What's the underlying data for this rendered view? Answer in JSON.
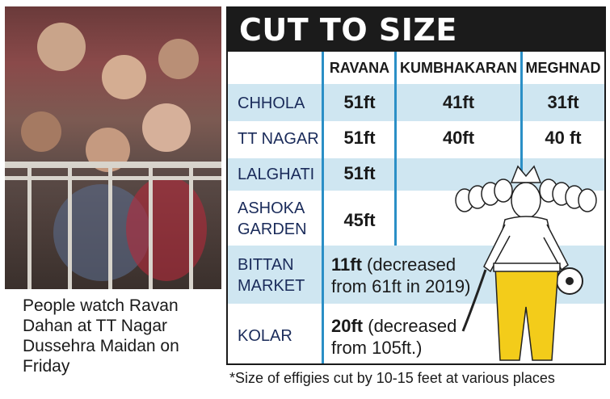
{
  "caption": "People watch Ravan Dahan at TT Nagar Dussehra Maidan on Friday",
  "table": {
    "title": "CUT TO SIZE",
    "columns": [
      "RAVANA",
      "KUMBHAKARAN",
      "MEGHNAD"
    ],
    "rows": [
      {
        "label": "CHHOLA",
        "values": [
          "51ft",
          "41ft",
          "31ft"
        ]
      },
      {
        "label": "TT NAGAR",
        "values": [
          "51ft",
          "40ft",
          "40 ft"
        ]
      },
      {
        "label": "LALGHATI",
        "values": [
          "51ft",
          "",
          ""
        ]
      },
      {
        "label_line1": "ASHOKA",
        "label_line2": "GARDEN",
        "values": [
          "45ft",
          "",
          ""
        ]
      },
      {
        "label_line1": "BITTAN",
        "label_line2": "MARKET",
        "bold": "11ft",
        "rest_line1": " (decreased",
        "rest_line2": "from 61ft in 2019)"
      },
      {
        "label": "KOLAR",
        "bold": "20ft",
        "rest_line1": " (decreased",
        "rest_line2": "from 105ft.)"
      }
    ]
  },
  "footnote": "*Size of effigies cut by 10-15 feet at various places",
  "colors": {
    "header_bg": "#1b1b1b",
    "band": "#cfe6f1",
    "divider": "#2b8fc6"
  },
  "icons": {
    "photo": "crowd-photo",
    "illustration": "ravana-effigy-illustration"
  }
}
